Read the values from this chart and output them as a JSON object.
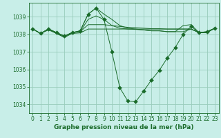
{
  "title": "Graphe pression niveau de la mer (hPa)",
  "bg_color": "#c8eee8",
  "plot_bg_color": "#c8eee8",
  "grid_color": "#99ccbb",
  "line_color": "#1a6b2a",
  "ylim": [
    1033.5,
    1039.8
  ],
  "yticks": [
    1034,
    1035,
    1036,
    1037,
    1038,
    1039
  ],
  "xlim": [
    -0.5,
    23.5
  ],
  "xticks": [
    0,
    1,
    2,
    3,
    4,
    5,
    6,
    7,
    8,
    9,
    10,
    11,
    12,
    13,
    14,
    15,
    16,
    17,
    18,
    19,
    20,
    21,
    22,
    23
  ],
  "lines": [
    {
      "x": [
        0,
        1,
        2,
        3,
        4,
        5,
        6,
        7,
        8,
        9,
        10,
        11,
        12,
        13,
        14,
        15,
        16,
        17,
        18,
        19,
        20,
        21,
        22,
        23
      ],
      "y": [
        1038.3,
        1038.05,
        1038.25,
        1038.05,
        1037.82,
        1038.05,
        1038.08,
        1038.3,
        1038.3,
        1038.3,
        1038.3,
        1038.3,
        1038.3,
        1038.3,
        1038.3,
        1038.3,
        1038.3,
        1038.3,
        1038.3,
        1038.3,
        1038.3,
        1038.1,
        1038.1,
        1038.35
      ],
      "marker": false
    },
    {
      "x": [
        0,
        1,
        2,
        3,
        4,
        5,
        6,
        7,
        8,
        9,
        10,
        11,
        12,
        13,
        14,
        15,
        16,
        17,
        18,
        19,
        20,
        21,
        22,
        23
      ],
      "y": [
        1038.3,
        1038.05,
        1038.3,
        1038.05,
        1037.85,
        1038.1,
        1038.15,
        1038.55,
        1038.55,
        1038.55,
        1038.5,
        1038.45,
        1038.4,
        1038.38,
        1038.35,
        1038.32,
        1038.32,
        1038.3,
        1038.3,
        1038.3,
        1038.3,
        1038.1,
        1038.1,
        1038.35
      ],
      "marker": false
    },
    {
      "x": [
        0,
        1,
        2,
        3,
        4,
        5,
        6,
        7,
        8,
        9,
        10,
        11,
        12,
        13,
        14,
        15,
        16,
        17,
        18,
        19,
        20,
        21,
        22,
        23
      ],
      "y": [
        1038.3,
        1038.05,
        1038.3,
        1038.1,
        1037.9,
        1038.1,
        1038.15,
        1038.85,
        1039.05,
        1038.85,
        1038.5,
        1038.35,
        1038.3,
        1038.28,
        1038.25,
        1038.2,
        1038.2,
        1038.15,
        1038.15,
        1038.15,
        1038.3,
        1038.1,
        1038.1,
        1038.35
      ],
      "marker": false
    },
    {
      "x": [
        0,
        1,
        2,
        3,
        4,
        5,
        6,
        7,
        8,
        9,
        10,
        11,
        12,
        13,
        14,
        15,
        16,
        17,
        18,
        19,
        20,
        21,
        22,
        23
      ],
      "y": [
        1038.3,
        1038.05,
        1038.3,
        1038.1,
        1037.9,
        1038.1,
        1038.2,
        1039.15,
        1039.5,
        1039.15,
        1038.85,
        1038.5,
        1038.35,
        1038.3,
        1038.25,
        1038.2,
        1038.2,
        1038.15,
        1038.15,
        1038.5,
        1038.55,
        1038.1,
        1038.15,
        1038.35
      ],
      "marker": false
    },
    {
      "x": [
        0,
        1,
        2,
        3,
        4,
        5,
        6,
        7,
        8,
        9,
        10,
        11,
        12,
        13,
        14,
        15,
        16,
        17,
        18,
        19,
        20,
        21,
        22,
        23
      ],
      "y": [
        1038.3,
        1038.05,
        1038.3,
        1038.1,
        1037.9,
        1038.1,
        1038.2,
        1039.15,
        1039.5,
        1038.85,
        1037.0,
        1034.95,
        1034.2,
        1034.15,
        1034.75,
        1035.4,
        1035.95,
        1036.65,
        1037.25,
        1038.0,
        1038.45,
        1038.1,
        1038.15,
        1038.35
      ],
      "marker": true,
      "markersize": 3
    }
  ],
  "tick_fontsize": 5.5,
  "label_fontsize": 6.5,
  "tick_color": "#1a6b2a",
  "label_color": "#1a6b2a",
  "spine_color": "#1a6b2a"
}
